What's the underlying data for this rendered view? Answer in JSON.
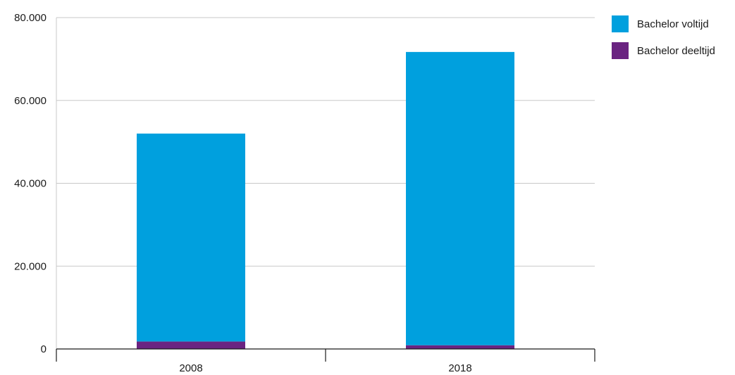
{
  "chart_data": {
    "type": "bar",
    "stacked": true,
    "categories": [
      "2008",
      "2018"
    ],
    "series": [
      {
        "name": "Bachelor deeltijd",
        "values": [
          1800,
          900
        ],
        "color": "#6a2381"
      },
      {
        "name": "Bachelor voltijd",
        "values": [
          50200,
          70800
        ],
        "color": "#00a0de"
      }
    ],
    "ylim": [
      0,
      80000
    ],
    "yticks": [
      0,
      20000,
      40000,
      60000,
      80000
    ],
    "ytick_labels": [
      "0",
      "20.000",
      "40.000",
      "60.000",
      "80.000"
    ],
    "grid": true,
    "legend": {
      "position": "top-right",
      "entries": [
        {
          "label": "Bachelor voltijd",
          "color": "#00a0de"
        },
        {
          "label": "Bachelor deeltijd",
          "color": "#6a2381"
        }
      ]
    },
    "gridline_color": "#c8c8c8",
    "axis_color": "#1a1a1a"
  }
}
